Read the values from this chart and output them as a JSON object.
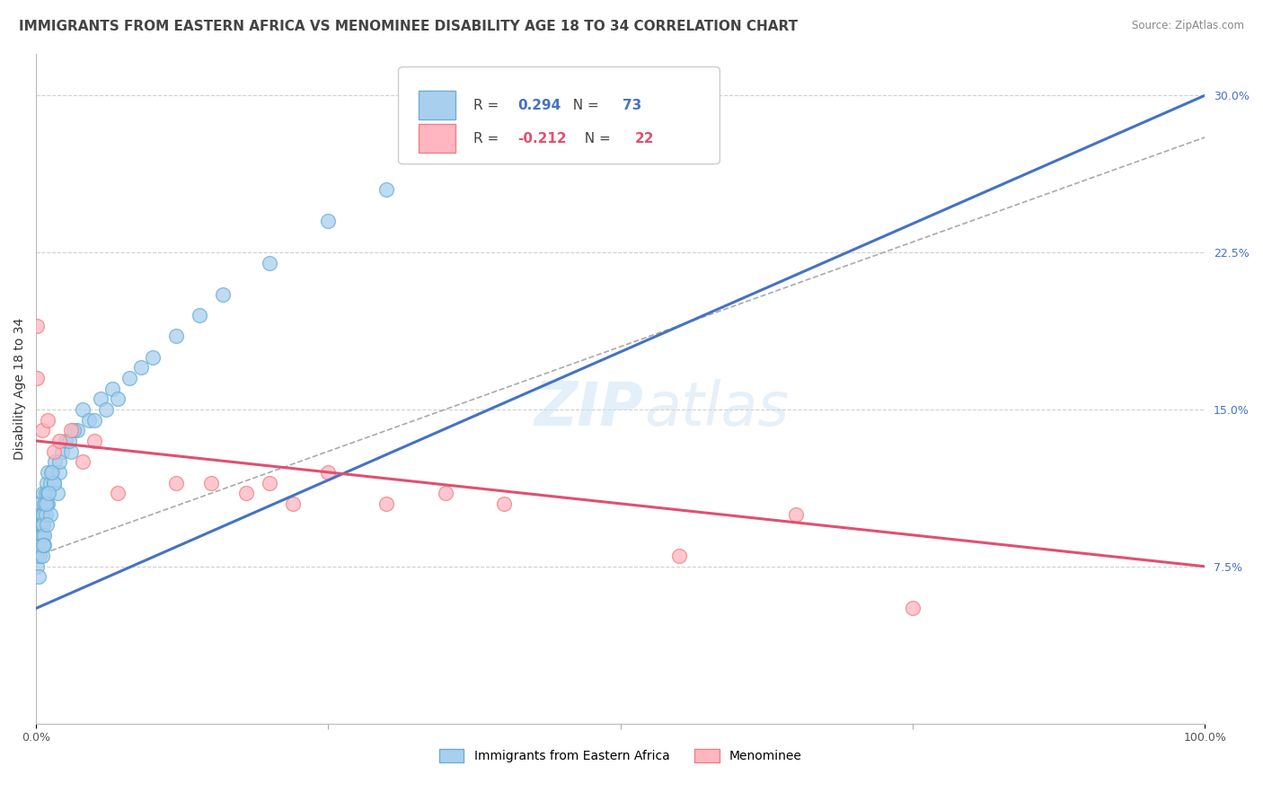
{
  "title": "IMMIGRANTS FROM EASTERN AFRICA VS MENOMINEE DISABILITY AGE 18 TO 34 CORRELATION CHART",
  "source": "Source: ZipAtlas.com",
  "ylabel": "Disability Age 18 to 34",
  "r_blue": 0.294,
  "n_blue": 73,
  "r_pink": -0.212,
  "n_pink": 22,
  "blue_scatter_color": "#a8d0ee",
  "blue_edge_color": "#6baed6",
  "pink_scatter_color": "#ffb6c1",
  "pink_edge_color": "#f08080",
  "blue_line_color": "#4472c4",
  "pink_line_color": "#e05070",
  "gray_dash_color": "#aaaaaa",
  "legend_blue_label": "Immigrants from Eastern Africa",
  "legend_pink_label": "Menominee",
  "xlim": [
    0,
    100
  ],
  "ylim": [
    0,
    32
  ],
  "yticks_right": [
    7.5,
    15.0,
    22.5,
    30.0
  ],
  "ytick_labels_right": [
    "7.5%",
    "15.0%",
    "22.5%",
    "30.0%"
  ],
  "background_color": "#ffffff",
  "grid_color": "#d0d0d0",
  "title_fontsize": 11,
  "axis_fontsize": 10,
  "tick_fontsize": 9,
  "blue_scatter_x": [
    0.1,
    0.1,
    0.1,
    0.1,
    0.2,
    0.2,
    0.2,
    0.2,
    0.2,
    0.3,
    0.3,
    0.3,
    0.3,
    0.3,
    0.4,
    0.4,
    0.4,
    0.4,
    0.5,
    0.5,
    0.5,
    0.5,
    0.6,
    0.6,
    0.6,
    0.7,
    0.7,
    0.7,
    0.8,
    0.8,
    0.9,
    0.9,
    1.0,
    1.0,
    1.0,
    1.2,
    1.2,
    1.4,
    1.5,
    1.6,
    1.8,
    2.0,
    2.2,
    2.5,
    3.0,
    3.5,
    4.0,
    4.5,
    5.0,
    5.5,
    6.0,
    6.5,
    7.0,
    8.0,
    9.0,
    10.0,
    12.0,
    14.0,
    16.0,
    20.0,
    25.0,
    30.0,
    40.0,
    50.0,
    2.8,
    3.2,
    2.0,
    1.5,
    0.8,
    0.9,
    1.1,
    1.3,
    0.6
  ],
  "blue_scatter_y": [
    9.5,
    8.0,
    10.5,
    7.5,
    9.0,
    10.0,
    8.5,
    9.5,
    7.0,
    10.0,
    9.0,
    8.0,
    9.5,
    10.5,
    9.0,
    10.0,
    8.5,
    9.5,
    9.0,
    10.0,
    8.0,
    9.5,
    11.0,
    10.0,
    9.5,
    10.5,
    9.0,
    8.5,
    11.0,
    10.0,
    11.5,
    10.5,
    12.0,
    11.0,
    10.5,
    11.5,
    10.0,
    12.0,
    11.5,
    12.5,
    11.0,
    12.0,
    13.0,
    13.5,
    13.0,
    14.0,
    15.0,
    14.5,
    14.5,
    15.5,
    15.0,
    16.0,
    15.5,
    16.5,
    17.0,
    17.5,
    18.5,
    19.5,
    20.5,
    22.0,
    24.0,
    25.5,
    28.0,
    29.5,
    13.5,
    14.0,
    12.5,
    11.5,
    10.5,
    9.5,
    11.0,
    12.0,
    8.5
  ],
  "pink_scatter_x": [
    0.1,
    0.1,
    0.5,
    1.0,
    1.5,
    2.0,
    3.0,
    4.0,
    5.0,
    7.0,
    12.0,
    15.0,
    18.0,
    20.0,
    22.0,
    25.0,
    30.0,
    35.0,
    40.0,
    55.0,
    65.0,
    75.0
  ],
  "pink_scatter_y": [
    19.0,
    16.5,
    14.0,
    14.5,
    13.0,
    13.5,
    14.0,
    12.5,
    13.5,
    11.0,
    11.5,
    11.5,
    11.0,
    11.5,
    10.5,
    12.0,
    10.5,
    11.0,
    10.5,
    8.0,
    10.0,
    5.5
  ],
  "blue_line_x": [
    0,
    100
  ],
  "blue_line_y": [
    5.5,
    30.0
  ],
  "pink_line_x": [
    0,
    100
  ],
  "pink_line_y": [
    13.5,
    7.5
  ],
  "gray_dash_line_x": [
    0,
    100
  ],
  "gray_dash_line_y": [
    8.0,
    28.0
  ],
  "watermark_zip": "ZIP",
  "watermark_atlas": "atlas"
}
